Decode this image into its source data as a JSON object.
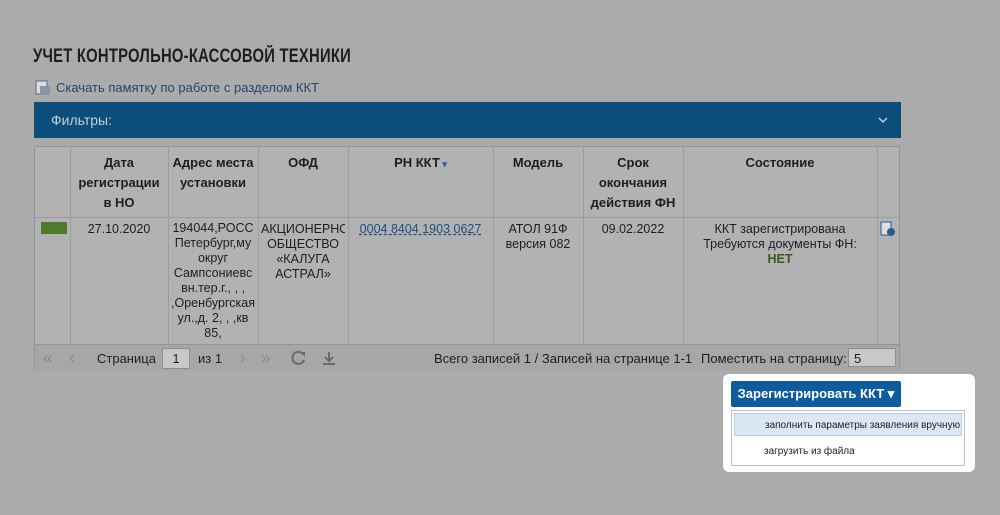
{
  "header": {
    "title": "УЧЕТ КОНТРОЛЬНО-КАССОВОЙ ТЕХНИКИ",
    "link": "Скачать памятку по работе с разделом ККТ"
  },
  "filters": {
    "label": "Фильтры:"
  },
  "table": {
    "columns": [
      "",
      "Дата регистрации в НО",
      "Адрес места установки",
      "ОФД",
      "РН ККТ",
      "Модель",
      "Срок окончания действия ФН",
      "Состояние",
      ""
    ],
    "rows": [
      {
        "date": "27.10.2020",
        "address": [
          "194044,РОСС",
          "Петербург,му",
          "округ",
          "Сампсониевс",
          "вн.тер.г., , ,",
          ",Оренбургская",
          "ул.,д. 2, , ,кв",
          "85,"
        ],
        "ofd": [
          "АКЦИОНЕРНО",
          "ОБЩЕСТВО",
          "«КАЛУГА",
          "АСТРАЛ»"
        ],
        "rn": "0004 8404 1903 0627",
        "model": [
          "АТОЛ 91Ф",
          "версия 082"
        ],
        "fn_end": "09.02.2022",
        "state": [
          "ККТ зарегистрирована",
          "Требуются документы ФН:"
        ],
        "state_docs": "НЕТ"
      }
    ]
  },
  "pager": {
    "page_label": "Страница",
    "page": "1",
    "of": "из 1",
    "summary": "Всего записей 1 / Записей на странице 1-1",
    "per_page_label": "Поместить на страницу:",
    "per_page": "5"
  },
  "actions": {
    "button": "Зарегистрировать ККТ",
    "menu": [
      "заполнить параметры заявления вручную",
      "загрузить из файла"
    ]
  }
}
